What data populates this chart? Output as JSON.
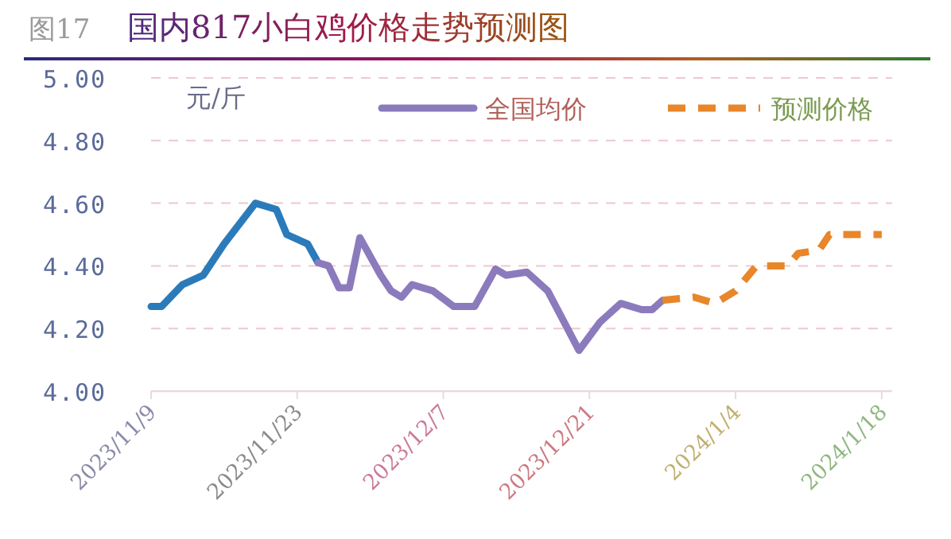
{
  "chart_data": {
    "type": "line",
    "title": "国内817小白鸡价格走势预测图",
    "ylabel": "元/斤",
    "annotations": [
      "图17"
    ],
    "xlim": [
      "2023-11-09",
      "2024-01-19"
    ],
    "xticks": [
      {
        "value": "2023-11-09",
        "label": "2023/11/9"
      },
      {
        "value": "2023-11-23",
        "label": "2023/11/23"
      },
      {
        "value": "2023-12-07",
        "label": "2023/12/7"
      },
      {
        "value": "2023-12-21",
        "label": "2023/12/21"
      },
      {
        "value": "2024-01-04",
        "label": "2024/1/4"
      },
      {
        "value": "2024-01-18",
        "label": "2024/1/18"
      }
    ],
    "ylim": [
      4.0,
      5.0
    ],
    "yticks": [
      {
        "value": 4.0,
        "label": "4.00"
      },
      {
        "value": 4.2,
        "label": "4.20"
      },
      {
        "value": 4.4,
        "label": "4.40"
      },
      {
        "value": 4.6,
        "label": "4.60"
      },
      {
        "value": 4.8,
        "label": "4.80"
      },
      {
        "value": 5.0,
        "label": "5.00"
      }
    ],
    "grid": "y",
    "legend": "top right",
    "marker": "none",
    "series": [
      {
        "color": "#2b7bba",
        "line_style": "solid",
        "x": [
          "2023-11-09",
          "2023-11-10",
          "2023-11-12",
          "2023-11-14",
          "2023-11-16",
          "2023-11-19",
          "2023-11-20",
          "2023-11-21",
          "2023-11-22",
          "2023-11-24",
          "2023-11-25"
        ],
        "values": [
          4.27,
          4.27,
          4.34,
          4.37,
          4.47,
          4.6,
          4.59,
          4.58,
          4.5,
          4.47,
          4.41
        ]
      },
      {
        "name": "全国均价",
        "color": "#8b7bbd",
        "line_style": "solid",
        "x": [
          "2023-11-25",
          "2023-11-26",
          "2023-11-27",
          "2023-11-28",
          "2023-11-29",
          "2023-12-01",
          "2023-12-02",
          "2023-12-03",
          "2023-12-04",
          "2023-12-06",
          "2023-12-08",
          "2023-12-10",
          "2023-12-12",
          "2023-12-13",
          "2023-12-15",
          "2023-12-17",
          "2023-12-20",
          "2023-12-22",
          "2023-12-24",
          "2023-12-26",
          "2023-12-27",
          "2023-12-28"
        ],
        "values": [
          4.41,
          4.4,
          4.33,
          4.33,
          4.49,
          4.37,
          4.32,
          4.3,
          4.34,
          4.32,
          4.27,
          4.27,
          4.39,
          4.37,
          4.38,
          4.32,
          4.13,
          4.22,
          4.28,
          4.26,
          4.26,
          4.29
        ]
      },
      {
        "name": "预测价格",
        "color": "#e8862a",
        "line_style": "dashed",
        "x": [
          "2023-12-28",
          "2023-12-31",
          "2024-01-02",
          "2024-01-04",
          "2024-01-06",
          "2024-01-09",
          "2024-01-10",
          "2024-01-12",
          "2024-01-13",
          "2024-01-16",
          "2024-01-18"
        ],
        "values": [
          4.29,
          4.3,
          4.28,
          4.32,
          4.4,
          4.4,
          4.44,
          4.45,
          4.5,
          4.5,
          4.5
        ]
      }
    ]
  }
}
